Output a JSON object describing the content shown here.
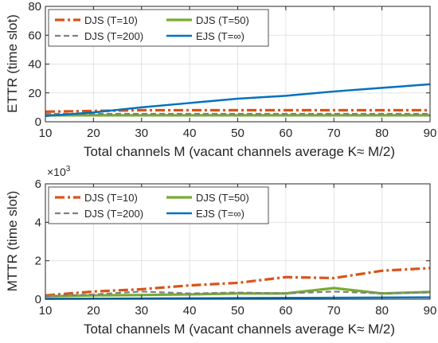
{
  "chart_data": [
    {
      "type": "line",
      "xlabel": "Total channels M (vacant channels average K≈ M/2)",
      "ylabel": "ETTR (time slot)",
      "xlim": [
        10,
        90
      ],
      "ylim": [
        0,
        80
      ],
      "xticks": [
        10,
        20,
        30,
        40,
        50,
        60,
        70,
        80,
        90
      ],
      "yticks": [
        0,
        20,
        40,
        60,
        80
      ],
      "grid": true,
      "legend_position": "top-left",
      "legend_columns": 2,
      "series": [
        {
          "name": "DJS (T=10)",
          "color": "#D95319",
          "style": "dashdot",
          "x": [
            10,
            20,
            30,
            40,
            50,
            60,
            70,
            80,
            90
          ],
          "y": [
            7,
            7.5,
            8,
            8,
            8,
            8,
            8,
            8,
            8
          ]
        },
        {
          "name": "DJS (T=50)",
          "color": "#77AC30",
          "style": "solid",
          "x": [
            10,
            20,
            30,
            40,
            50,
            60,
            70,
            80,
            90
          ],
          "y": [
            4.5,
            4.5,
            4.5,
            4.5,
            4.5,
            4.5,
            4.5,
            4.5,
            4.5
          ]
        },
        {
          "name": "DJS (T=200)",
          "color": "#808080",
          "style": "dashed",
          "x": [
            10,
            20,
            30,
            40,
            50,
            60,
            70,
            80,
            90
          ],
          "y": [
            5.5,
            5.5,
            5.5,
            5.5,
            5.5,
            5.5,
            5.5,
            5.5,
            5.5
          ]
        },
        {
          "name": "EJS (T=∞)",
          "color": "#0072BD",
          "style": "solid",
          "x": [
            10,
            20,
            30,
            40,
            50,
            60,
            70,
            80,
            90
          ],
          "y": [
            4,
            6.5,
            10,
            13,
            16,
            18,
            21,
            23.5,
            26
          ]
        }
      ]
    },
    {
      "type": "line",
      "xlabel": "Total channels M (vacant channels average K≈ M/2)",
      "ylabel": "MTTR (time slot)",
      "exponent_label": "×10",
      "exponent_power": "3",
      "xlim": [
        10,
        90
      ],
      "ylim": [
        0,
        6
      ],
      "xticks": [
        10,
        20,
        30,
        40,
        50,
        60,
        70,
        80,
        90
      ],
      "yticks": [
        0,
        2,
        4,
        6
      ],
      "grid": true,
      "legend_position": "top-left",
      "legend_columns": 2,
      "series": [
        {
          "name": "DJS (T=10)",
          "color": "#D95319",
          "style": "dashdot",
          "x": [
            10,
            20,
            30,
            40,
            50,
            60,
            70,
            80,
            90
          ],
          "y": [
            0.2,
            0.4,
            0.52,
            0.72,
            0.85,
            1.15,
            1.1,
            1.48,
            1.62
          ]
        },
        {
          "name": "DJS (T=50)",
          "color": "#77AC30",
          "style": "solid",
          "x": [
            10,
            20,
            30,
            40,
            50,
            60,
            70,
            80,
            90
          ],
          "y": [
            0.15,
            0.2,
            0.22,
            0.25,
            0.3,
            0.3,
            0.58,
            0.3,
            0.38
          ]
        },
        {
          "name": "DJS (T=200)",
          "color": "#808080",
          "style": "dashed",
          "x": [
            10,
            20,
            30,
            40,
            50,
            60,
            70,
            80,
            90
          ],
          "y": [
            0.15,
            0.25,
            0.4,
            0.3,
            0.35,
            0.3,
            0.4,
            0.3,
            0.35
          ]
        },
        {
          "name": "EJS (T=∞)",
          "color": "#0072BD",
          "style": "solid",
          "x": [
            10,
            20,
            30,
            40,
            50,
            60,
            70,
            80,
            90
          ],
          "y": [
            0.02,
            0.03,
            0.04,
            0.05,
            0.06,
            0.07,
            0.08,
            0.09,
            0.1
          ]
        }
      ]
    }
  ]
}
